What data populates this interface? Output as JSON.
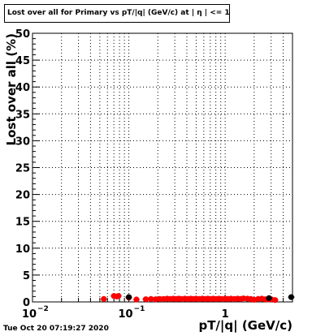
{
  "title": "Lost over all for Primary vs pT/|q| (GeV/c) at | η | <= 1.0",
  "footer": "Tue Oct 20 07:19:27 2020",
  "chart_data": {
    "type": "scatter",
    "title": "Lost over all for Primary vs pT/|q| (GeV/c) at | η | <= 1.0",
    "xlabel": "pT/|q| (GeV/c)",
    "ylabel": "Lost over all (%)",
    "x_scale": "log",
    "xlim": [
      0.01,
      5
    ],
    "ylim": [
      0,
      50
    ],
    "grid": true,
    "y_ticks": [
      0,
      5,
      10,
      15,
      20,
      25,
      30,
      35,
      40,
      45,
      50
    ],
    "x_tick_labels": [
      {
        "x": 0.01,
        "base": "10",
        "exp": "−2"
      },
      {
        "x": 0.1,
        "base": "10",
        "exp": "−1"
      },
      {
        "x": 1,
        "base": "1",
        "exp": ""
      }
    ],
    "marker_color": "#ff0000",
    "marker_color_end": "#000000",
    "series": [
      {
        "points": [
          [
            0.055,
            0.55
          ],
          [
            0.07,
            1.1
          ],
          [
            0.075,
            1.0
          ],
          [
            0.078,
            1.1
          ],
          [
            0.1,
            0.8
          ],
          [
            0.12,
            0.45
          ],
          [
            0.15,
            0.5
          ],
          [
            0.17,
            0.55
          ],
          [
            0.19,
            0.5
          ],
          [
            0.21,
            0.55
          ],
          [
            0.23,
            0.55
          ],
          [
            0.25,
            0.6
          ],
          [
            0.27,
            0.55
          ],
          [
            0.29,
            0.6
          ],
          [
            0.31,
            0.55
          ],
          [
            0.33,
            0.6
          ],
          [
            0.35,
            0.55
          ],
          [
            0.38,
            0.6
          ],
          [
            0.41,
            0.55
          ],
          [
            0.44,
            0.6
          ],
          [
            0.47,
            0.55
          ],
          [
            0.5,
            0.6
          ],
          [
            0.54,
            0.55
          ],
          [
            0.58,
            0.6
          ],
          [
            0.62,
            0.55
          ],
          [
            0.66,
            0.6
          ],
          [
            0.7,
            0.55
          ],
          [
            0.75,
            0.6
          ],
          [
            0.8,
            0.55
          ],
          [
            0.86,
            0.6
          ],
          [
            0.92,
            0.55
          ],
          [
            1.0,
            0.6
          ],
          [
            1.07,
            0.55
          ],
          [
            1.15,
            0.6
          ],
          [
            1.25,
            0.55
          ],
          [
            1.35,
            0.6
          ],
          [
            1.45,
            0.55
          ],
          [
            1.55,
            0.65
          ],
          [
            1.7,
            0.6
          ],
          [
            1.85,
            0.55
          ],
          [
            2.0,
            0.4
          ],
          [
            2.2,
            0.55
          ],
          [
            2.4,
            0.6
          ],
          [
            2.6,
            0.5
          ],
          [
            2.8,
            0.45
          ],
          [
            3.0,
            0.5
          ],
          [
            3.3,
            0.35
          ]
        ]
      },
      {
        "points": [
          [
            0.1,
            0.9
          ],
          [
            2.85,
            0.7
          ],
          [
            4.85,
            0.9
          ]
        ]
      }
    ]
  }
}
